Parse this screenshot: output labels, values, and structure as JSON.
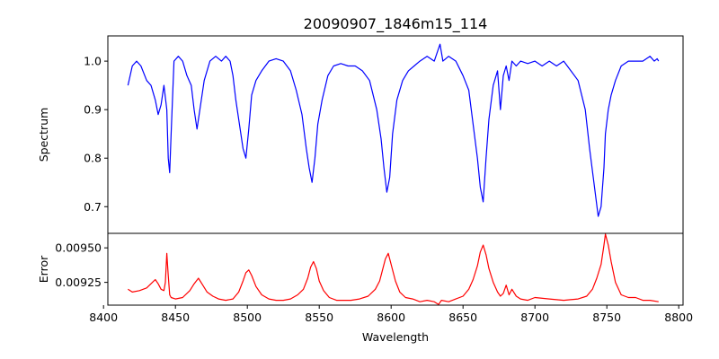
{
  "chart_data": [
    {
      "type": "line",
      "title": "20090907_1846m15_114",
      "xlabel": "",
      "ylabel": "Spectrum",
      "xlim": [
        8403,
        8803
      ],
      "ylim": [
        0.645,
        1.052
      ],
      "yticks": [
        0.7,
        0.8,
        0.9,
        1.0
      ],
      "yticklabels": [
        "0.7",
        "0.8",
        "0.9",
        "1.0"
      ],
      "color": "#0000ff",
      "series": [
        {
          "name": "Spectrum",
          "x": [
            8417,
            8420,
            8423,
            8426,
            8430,
            8433,
            8436,
            8438,
            8440,
            8442,
            8444,
            8445,
            8446,
            8447,
            8449,
            8452,
            8455,
            8458,
            8461,
            8463,
            8465,
            8467,
            8470,
            8474,
            8478,
            8482,
            8485,
            8488,
            8490,
            8492,
            8495,
            8497,
            8499,
            8501,
            8503,
            8506,
            8510,
            8515,
            8520,
            8525,
            8530,
            8534,
            8538,
            8541,
            8543,
            8545,
            8547,
            8549,
            8552,
            8556,
            8560,
            8565,
            8570,
            8575,
            8580,
            8585,
            8590,
            8593,
            8595,
            8597,
            8599,
            8601,
            8604,
            8608,
            8612,
            8616,
            8620,
            8625,
            8630,
            8634,
            8636,
            8640,
            8645,
            8650,
            8654,
            8657,
            8660,
            8662,
            8664,
            8666,
            8668,
            8671,
            8674,
            8676,
            8678,
            8680,
            8682,
            8684,
            8687,
            8690,
            8695,
            8700,
            8705,
            8710,
            8715,
            8720,
            8725,
            8730,
            8735,
            8738,
            8741,
            8744,
            8746,
            8748,
            8749,
            8751,
            8753,
            8756,
            8760,
            8765,
            8770,
            8775,
            8780,
            8783,
            8785,
            8786
          ],
          "y": [
            0.95,
            0.99,
            1.0,
            0.99,
            0.96,
            0.95,
            0.92,
            0.89,
            0.91,
            0.95,
            0.9,
            0.8,
            0.77,
            0.85,
            1.0,
            1.01,
            1.0,
            0.97,
            0.95,
            0.9,
            0.86,
            0.9,
            0.96,
            1.0,
            1.01,
            1.0,
            1.01,
            1.0,
            0.97,
            0.92,
            0.86,
            0.82,
            0.8,
            0.86,
            0.93,
            0.96,
            0.98,
            1.0,
            1.005,
            1.0,
            0.98,
            0.94,
            0.89,
            0.82,
            0.78,
            0.75,
            0.8,
            0.87,
            0.92,
            0.97,
            0.99,
            0.995,
            0.99,
            0.99,
            0.98,
            0.96,
            0.9,
            0.84,
            0.78,
            0.73,
            0.76,
            0.85,
            0.92,
            0.96,
            0.98,
            0.99,
            1.0,
            1.01,
            1.0,
            1.035,
            1.0,
            1.01,
            1.0,
            0.97,
            0.94,
            0.87,
            0.8,
            0.74,
            0.71,
            0.8,
            0.88,
            0.95,
            0.98,
            0.9,
            0.97,
            0.99,
            0.96,
            1.0,
            0.99,
            1.0,
            0.995,
            1.0,
            0.99,
            1.0,
            0.99,
            1.0,
            0.98,
            0.96,
            0.9,
            0.82,
            0.75,
            0.68,
            0.7,
            0.78,
            0.85,
            0.9,
            0.93,
            0.96,
            0.99,
            1.0,
            1.0,
            1.0,
            1.01,
            1.0,
            1.005,
            1.0
          ]
        }
      ]
    },
    {
      "type": "line",
      "title": "",
      "xlabel": "Wavelength",
      "ylabel": "Error",
      "xlim": [
        8403,
        8803
      ],
      "ylim": [
        0.009085,
        0.009605
      ],
      "xticks": [
        8400,
        8450,
        8500,
        8550,
        8600,
        8650,
        8700,
        8750,
        8800
      ],
      "xticklabels": [
        "8400",
        "8450",
        "8500",
        "8550",
        "8600",
        "8650",
        "8700",
        "8750",
        "8800"
      ],
      "yticks": [
        0.00925,
        0.0095
      ],
      "yticklabels": [
        "0.00925",
        "0.00950"
      ],
      "color": "#ff0000",
      "series": [
        {
          "name": "Error",
          "x": [
            8417,
            8420,
            8425,
            8430,
            8434,
            8436,
            8438,
            8440,
            8442,
            8443,
            8444,
            8445,
            8446,
            8447,
            8450,
            8455,
            8460,
            8463,
            8466,
            8469,
            8472,
            8476,
            8480,
            8485,
            8490,
            8494,
            8497,
            8499,
            8501,
            8503,
            8506,
            8510,
            8515,
            8520,
            8525,
            8530,
            8535,
            8539,
            8542,
            8544,
            8546,
            8548,
            8550,
            8553,
            8557,
            8562,
            8567,
            8572,
            8578,
            8584,
            8589,
            8592,
            8594,
            8596,
            8598,
            8600,
            8603,
            8606,
            8610,
            8615,
            8620,
            8625,
            8630,
            8633,
            8635,
            8640,
            8645,
            8650,
            8654,
            8657,
            8660,
            8662,
            8664,
            8666,
            8668,
            8671,
            8674,
            8676,
            8678,
            8680,
            8682,
            8684,
            8687,
            8690,
            8695,
            8700,
            8710,
            8720,
            8730,
            8736,
            8740,
            8743,
            8746,
            8748,
            8749,
            8751,
            8753,
            8756,
            8760,
            8765,
            8770,
            8775,
            8780,
            8786
          ],
          "y": [
            0.0092,
            0.00918,
            0.00919,
            0.00921,
            0.00925,
            0.00927,
            0.00924,
            0.0092,
            0.00919,
            0.00925,
            0.00946,
            0.0093,
            0.00916,
            0.00914,
            0.00913,
            0.00914,
            0.00919,
            0.00924,
            0.00928,
            0.00923,
            0.00918,
            0.00915,
            0.00913,
            0.00912,
            0.00913,
            0.00918,
            0.00926,
            0.00932,
            0.00934,
            0.0093,
            0.00922,
            0.00916,
            0.00913,
            0.00912,
            0.00912,
            0.00913,
            0.00916,
            0.0092,
            0.00928,
            0.00936,
            0.0094,
            0.00935,
            0.00926,
            0.00919,
            0.00914,
            0.00912,
            0.00912,
            0.00912,
            0.00913,
            0.00915,
            0.0092,
            0.00926,
            0.00934,
            0.00942,
            0.00946,
            0.00938,
            0.00926,
            0.00918,
            0.00914,
            0.00913,
            0.00911,
            0.00912,
            0.00911,
            0.00909,
            0.00912,
            0.00911,
            0.00913,
            0.00915,
            0.0092,
            0.00927,
            0.00937,
            0.00947,
            0.00952,
            0.00945,
            0.00935,
            0.00925,
            0.00918,
            0.00915,
            0.00917,
            0.00923,
            0.00916,
            0.0092,
            0.00915,
            0.00913,
            0.00912,
            0.00914,
            0.00913,
            0.00912,
            0.00913,
            0.00915,
            0.0092,
            0.00928,
            0.00938,
            0.00952,
            0.0096,
            0.00952,
            0.0094,
            0.00925,
            0.00916,
            0.00914,
            0.00914,
            0.00912,
            0.00912,
            0.00911
          ]
        }
      ]
    }
  ]
}
